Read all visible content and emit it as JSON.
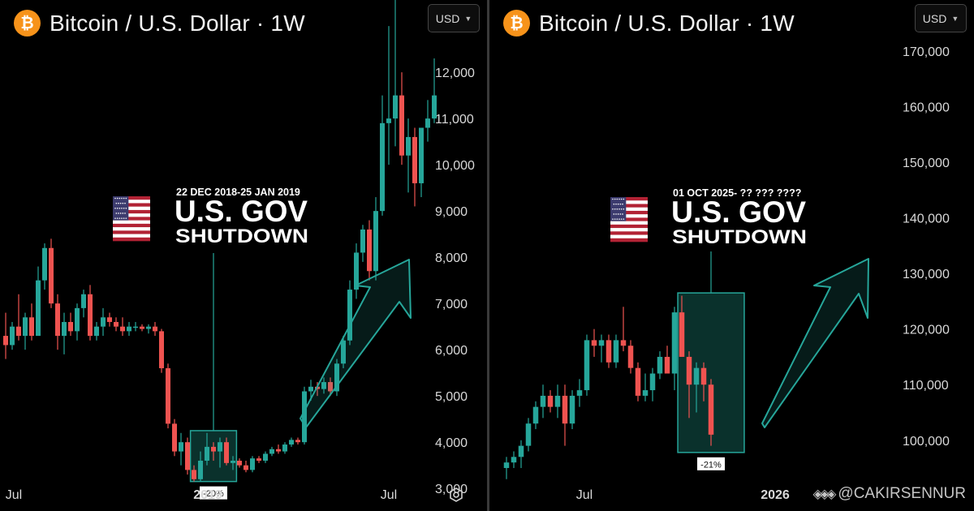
{
  "panels": [
    {
      "title": "Bitcoin / U.S. Dollar · 1W",
      "currency": "USD",
      "annotation": {
        "dates": "22 DEC 2018-25 JAN 2019",
        "headline": "U.S. GOV",
        "subline": "SHUTDOWN",
        "change": "-20%"
      },
      "x_labels": [
        "Jul",
        "2019",
        "Jul"
      ]
    },
    {
      "title": "Bitcoin / U.S. Dollar · 1W",
      "currency": "USD",
      "annotation": {
        "dates": "01 OCT 2025- ?? ??? ????",
        "headline": "U.S. GOV",
        "subline": "SHUTDOWN",
        "change": "-21%"
      },
      "x_labels": [
        "Jul",
        "2026"
      ]
    }
  ],
  "watermark": "@CAKIRSENNUR",
  "colors": {
    "up": "#26a69a",
    "down": "#ef5350",
    "accent": "#f7931a",
    "box_fill": "#0c3a34",
    "box_stroke": "#26a69a"
  },
  "chart_data": [
    {
      "type": "candlestick",
      "title": "Bitcoin / U.S. Dollar · 1W",
      "ylim": [
        2600,
        13300
      ],
      "y_ticks": [
        3000,
        4000,
        5000,
        6000,
        7000,
        8000,
        9000,
        10000,
        11000,
        12000
      ],
      "y_tick_labels": [
        "3,000",
        "4,000",
        "5,000",
        "6,000",
        "7,000",
        "8,000",
        "9,000",
        "10,000",
        "11,000",
        "12,000"
      ],
      "x_tick_labels": [
        "Jul",
        "2019",
        "Jul"
      ],
      "candles": [
        {
          "o": 6300,
          "h": 6800,
          "l": 5800,
          "c": 6100
        },
        {
          "o": 6100,
          "h": 6600,
          "l": 6000,
          "c": 6500
        },
        {
          "o": 6500,
          "h": 7200,
          "l": 6200,
          "c": 6300
        },
        {
          "o": 6300,
          "h": 6800,
          "l": 6000,
          "c": 6700
        },
        {
          "o": 6700,
          "h": 7000,
          "l": 6200,
          "c": 6300
        },
        {
          "o": 6300,
          "h": 7800,
          "l": 6300,
          "c": 7500
        },
        {
          "o": 7500,
          "h": 8300,
          "l": 7300,
          "c": 8200
        },
        {
          "o": 8200,
          "h": 8400,
          "l": 6900,
          "c": 7000
        },
        {
          "o": 7000,
          "h": 7200,
          "l": 6000,
          "c": 6300
        },
        {
          "o": 6300,
          "h": 6800,
          "l": 5900,
          "c": 6600
        },
        {
          "o": 6600,
          "h": 6800,
          "l": 6300,
          "c": 6400
        },
        {
          "o": 6400,
          "h": 7000,
          "l": 6200,
          "c": 6900
        },
        {
          "o": 6900,
          "h": 7300,
          "l": 6700,
          "c": 7200
        },
        {
          "o": 7200,
          "h": 7400,
          "l": 6200,
          "c": 6300
        },
        {
          "o": 6300,
          "h": 6600,
          "l": 6200,
          "c": 6500
        },
        {
          "o": 6500,
          "h": 6900,
          "l": 6300,
          "c": 6700
        },
        {
          "o": 6700,
          "h": 6800,
          "l": 6500,
          "c": 6600
        },
        {
          "o": 6600,
          "h": 6700,
          "l": 6400,
          "c": 6500
        },
        {
          "o": 6500,
          "h": 6700,
          "l": 6300,
          "c": 6400
        },
        {
          "o": 6400,
          "h": 6600,
          "l": 6300,
          "c": 6500
        },
        {
          "o": 6500,
          "h": 6600,
          "l": 6400,
          "c": 6500
        },
        {
          "o": 6500,
          "h": 6550,
          "l": 6400,
          "c": 6450
        },
        {
          "o": 6450,
          "h": 6550,
          "l": 6350,
          "c": 6500
        },
        {
          "o": 6500,
          "h": 6600,
          "l": 6300,
          "c": 6400
        },
        {
          "o": 6400,
          "h": 6450,
          "l": 5500,
          "c": 5600
        },
        {
          "o": 5600,
          "h": 5700,
          "l": 4300,
          "c": 4400
        },
        {
          "o": 4400,
          "h": 4500,
          "l": 3700,
          "c": 3800
        },
        {
          "o": 3800,
          "h": 4200,
          "l": 3500,
          "c": 4000
        },
        {
          "o": 4000,
          "h": 4100,
          "l": 3300,
          "c": 3400
        },
        {
          "o": 3400,
          "h": 3500,
          "l": 3150,
          "c": 3200
        },
        {
          "o": 3200,
          "h": 3800,
          "l": 3150,
          "c": 3600
        },
        {
          "o": 3600,
          "h": 4200,
          "l": 3500,
          "c": 3900
        },
        {
          "o": 3900,
          "h": 4000,
          "l": 3600,
          "c": 3800
        },
        {
          "o": 3800,
          "h": 4100,
          "l": 3450,
          "c": 4000
        },
        {
          "o": 4000,
          "h": 4100,
          "l": 3500,
          "c": 3550
        },
        {
          "o": 3550,
          "h": 3700,
          "l": 3400,
          "c": 3600
        },
        {
          "o": 3600,
          "h": 3650,
          "l": 3450,
          "c": 3500
        },
        {
          "o": 3500,
          "h": 3600,
          "l": 3350,
          "c": 3400
        },
        {
          "o": 3400,
          "h": 3700,
          "l": 3350,
          "c": 3650
        },
        {
          "o": 3650,
          "h": 3700,
          "l": 3550,
          "c": 3600
        },
        {
          "o": 3600,
          "h": 3800,
          "l": 3550,
          "c": 3750
        },
        {
          "o": 3750,
          "h": 3900,
          "l": 3700,
          "c": 3850
        },
        {
          "o": 3850,
          "h": 3950,
          "l": 3750,
          "c": 3800
        },
        {
          "o": 3800,
          "h": 4000,
          "l": 3750,
          "c": 3950
        },
        {
          "o": 3950,
          "h": 4100,
          "l": 3900,
          "c": 4050
        },
        {
          "o": 4050,
          "h": 4100,
          "l": 3950,
          "c": 4000
        },
        {
          "o": 4000,
          "h": 5200,
          "l": 3950,
          "c": 5100
        },
        {
          "o": 5100,
          "h": 5350,
          "l": 4900,
          "c": 5200
        },
        {
          "o": 5200,
          "h": 5300,
          "l": 5000,
          "c": 5150
        },
        {
          "o": 5150,
          "h": 5400,
          "l": 5050,
          "c": 5300
        },
        {
          "o": 5300,
          "h": 5400,
          "l": 5000,
          "c": 5100
        },
        {
          "o": 5100,
          "h": 5800,
          "l": 5000,
          "c": 5700
        },
        {
          "o": 5700,
          "h": 6300,
          "l": 5600,
          "c": 6200
        },
        {
          "o": 6200,
          "h": 7500,
          "l": 6100,
          "c": 7300
        },
        {
          "o": 7300,
          "h": 8300,
          "l": 7100,
          "c": 8100
        },
        {
          "o": 8100,
          "h": 8700,
          "l": 7900,
          "c": 8600
        },
        {
          "o": 8600,
          "h": 8800,
          "l": 7500,
          "c": 7700
        },
        {
          "o": 7700,
          "h": 9300,
          "l": 7500,
          "c": 9000
        },
        {
          "o": 9000,
          "h": 11500,
          "l": 8900,
          "c": 10900
        },
        {
          "o": 10900,
          "h": 13000,
          "l": 10000,
          "c": 11000
        },
        {
          "o": 11000,
          "h": 13800,
          "l": 10400,
          "c": 11500
        },
        {
          "o": 11500,
          "h": 12000,
          "l": 10000,
          "c": 10200
        },
        {
          "o": 10200,
          "h": 11000,
          "l": 9400,
          "c": 10600
        },
        {
          "o": 10600,
          "h": 10800,
          "l": 9100,
          "c": 9600
        },
        {
          "o": 9600,
          "h": 10800,
          "l": 9300,
          "c": 10800
        },
        {
          "o": 10800,
          "h": 11400,
          "l": 10500,
          "c": 11000
        },
        {
          "o": 11000,
          "h": 12300,
          "l": 10900,
          "c": 11500
        }
      ]
    },
    {
      "type": "candlestick",
      "title": "Bitcoin / U.S. Dollar · 1W",
      "ylim": [
        88000,
        177000
      ],
      "y_ticks": [
        100000,
        110000,
        120000,
        130000,
        140000,
        150000,
        160000,
        170000
      ],
      "y_tick_labels": [
        "100,000",
        "110,000",
        "120,000",
        "130,000",
        "140,000",
        "150,000",
        "160,000",
        "170,000"
      ],
      "x_tick_labels": [
        "Jul",
        "2026"
      ],
      "candles": [
        {
          "o": 95000,
          "h": 97000,
          "l": 93000,
          "c": 96000
        },
        {
          "o": 96000,
          "h": 98000,
          "l": 95000,
          "c": 97000
        },
        {
          "o": 97000,
          "h": 100000,
          "l": 95000,
          "c": 99000
        },
        {
          "o": 99000,
          "h": 104000,
          "l": 98000,
          "c": 103000
        },
        {
          "o": 103000,
          "h": 107000,
          "l": 102000,
          "c": 106000
        },
        {
          "o": 106000,
          "h": 110000,
          "l": 104000,
          "c": 108000
        },
        {
          "o": 108000,
          "h": 109000,
          "l": 105000,
          "c": 106000
        },
        {
          "o": 106000,
          "h": 110000,
          "l": 104000,
          "c": 108000
        },
        {
          "o": 108000,
          "h": 110000,
          "l": 99000,
          "c": 103000
        },
        {
          "o": 103000,
          "h": 109000,
          "l": 102000,
          "c": 108000
        },
        {
          "o": 108000,
          "h": 111000,
          "l": 106000,
          "c": 109000
        },
        {
          "o": 109000,
          "h": 119000,
          "l": 108000,
          "c": 118000
        },
        {
          "o": 118000,
          "h": 120000,
          "l": 115000,
          "c": 117000
        },
        {
          "o": 117000,
          "h": 119000,
          "l": 114000,
          "c": 118000
        },
        {
          "o": 118000,
          "h": 119000,
          "l": 113000,
          "c": 114000
        },
        {
          "o": 114000,
          "h": 119000,
          "l": 113000,
          "c": 118000
        },
        {
          "o": 118000,
          "h": 124000,
          "l": 116000,
          "c": 117000
        },
        {
          "o": 117000,
          "h": 118000,
          "l": 112000,
          "c": 113000
        },
        {
          "o": 113000,
          "h": 114000,
          "l": 107000,
          "c": 108000
        },
        {
          "o": 108000,
          "h": 112000,
          "l": 107000,
          "c": 109000
        },
        {
          "o": 109000,
          "h": 113000,
          "l": 107000,
          "c": 112000
        },
        {
          "o": 112000,
          "h": 116000,
          "l": 111000,
          "c": 115000
        },
        {
          "o": 115000,
          "h": 117000,
          "l": 112000,
          "c": 112000
        },
        {
          "o": 112000,
          "h": 124000,
          "l": 109000,
          "c": 123000
        },
        {
          "o": 123000,
          "h": 126000,
          "l": 115000,
          "c": 115000
        },
        {
          "o": 115000,
          "h": 116000,
          "l": 104000,
          "c": 110000
        },
        {
          "o": 110000,
          "h": 114000,
          "l": 105000,
          "c": 113000
        },
        {
          "o": 113000,
          "h": 114000,
          "l": 107000,
          "c": 110000
        },
        {
          "o": 110000,
          "h": 111000,
          "l": 99000,
          "c": 101000
        }
      ]
    }
  ]
}
